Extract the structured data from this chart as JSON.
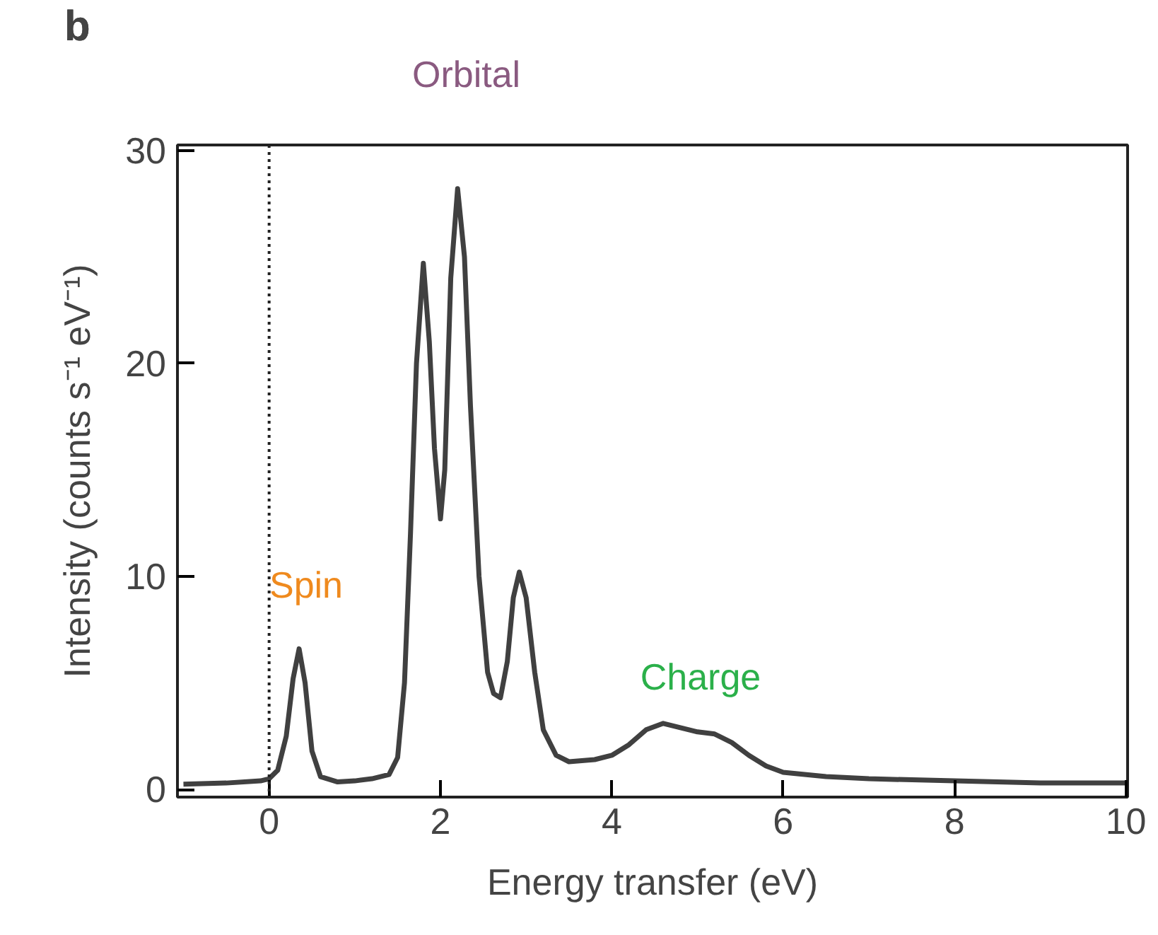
{
  "chart_data": {
    "type": "line",
    "title": "b",
    "xlabel": "Energy transfer (eV)",
    "ylabel": "Intensity (counts s⁻¹ eV⁻¹)",
    "xlim": [
      -1.07,
      10.02
    ],
    "ylim": [
      -0.36,
      30.25
    ],
    "xticks": [
      0,
      2,
      4,
      6,
      8,
      10
    ],
    "yticks": [
      0,
      10,
      20,
      30
    ],
    "grid": false,
    "marker": "none",
    "line_style": "solid",
    "ref_lines": [
      {
        "axis": "x",
        "value": 0,
        "color": "#222222",
        "line_style": "dotted"
      }
    ],
    "annotations": [
      "Orbital",
      "Spin",
      "Charge"
    ],
    "series": [
      {
        "color": "#404040",
        "x": [
          -1.0,
          -0.5,
          -0.1,
          0.0,
          0.1,
          0.2,
          0.28,
          0.35,
          0.42,
          0.5,
          0.6,
          0.8,
          1.0,
          1.2,
          1.4,
          1.5,
          1.58,
          1.65,
          1.72,
          1.8,
          1.87,
          1.93,
          2.0,
          2.05,
          2.12,
          2.2,
          2.28,
          2.35,
          2.45,
          2.55,
          2.62,
          2.7,
          2.78,
          2.85,
          2.92,
          3.0,
          3.1,
          3.2,
          3.35,
          3.5,
          3.8,
          4.0,
          4.2,
          4.4,
          4.6,
          4.8,
          5.0,
          5.2,
          5.4,
          5.6,
          5.8,
          6.0,
          6.5,
          7.0,
          8.0,
          9.0,
          10.0
        ],
        "values": [
          0.25,
          0.3,
          0.4,
          0.5,
          0.9,
          2.5,
          5.2,
          6.6,
          5.0,
          1.8,
          0.6,
          0.35,
          0.4,
          0.5,
          0.7,
          1.5,
          5,
          12,
          20,
          24.7,
          21,
          16,
          12.7,
          15,
          24,
          28.2,
          25,
          18,
          10,
          5.5,
          4.5,
          4.3,
          6,
          9,
          10.2,
          9,
          5.5,
          2.8,
          1.6,
          1.3,
          1.4,
          1.6,
          2.1,
          2.8,
          3.1,
          2.9,
          2.7,
          2.6,
          2.2,
          1.6,
          1.1,
          0.8,
          0.6,
          0.5,
          0.4,
          0.3,
          0.3
        ]
      }
    ]
  }
}
